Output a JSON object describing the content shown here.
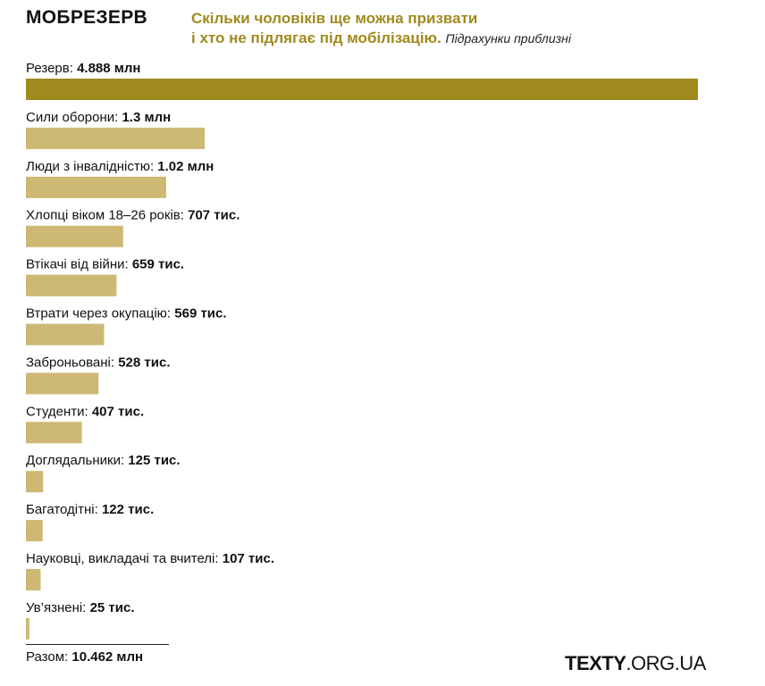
{
  "header": {
    "brand": "МОБРЕЗЕРВ",
    "subtitle_line1": "Скільки чоловіків ще можна призвати",
    "subtitle_line2": "і хто не підлягає під мобілізацію.",
    "note": "Підрахунки приблизні"
  },
  "colors": {
    "primary_bar": "#a08a1e",
    "secondary_bar": "#cdb874",
    "title_accent": "#a08a1e"
  },
  "chart_data": {
    "type": "bar",
    "orientation": "horizontal",
    "unit": "млн",
    "categories": [
      "Резерв",
      "Сили оборони",
      "Люди з інвалідністю",
      "Хлопці віком 18–26 років",
      "Втікачі від війни",
      "Втрати через окупацію",
      "Заброньовані",
      "Студенти",
      "Доглядальники",
      "Багатодітні",
      "Науковці, викладачі та вчителі",
      "Ув’язнені"
    ],
    "values": [
      4.888,
      1.3,
      1.02,
      0.707,
      0.659,
      0.569,
      0.528,
      0.407,
      0.125,
      0.122,
      0.107,
      0.025
    ],
    "value_labels": [
      "4.888 млн",
      "1.3 млн",
      "1.02 млн",
      "707 тис.",
      "659 тис.",
      "569 тис.",
      "528 тис.",
      "407 тис.",
      "125 тис.",
      "122 тис.",
      "107 тис.",
      "25 тис."
    ],
    "highlight_index": 0,
    "xlim": [
      0,
      4.888
    ]
  },
  "footer": {
    "total_label": "Разом:",
    "total_value": "10.462 млн",
    "logo_bold": "TEXTY",
    "logo_rest": ".ORG.UA"
  }
}
